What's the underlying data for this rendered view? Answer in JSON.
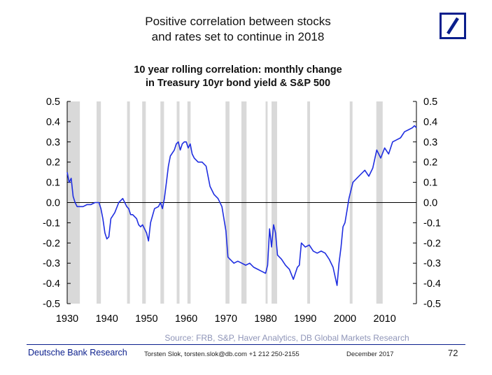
{
  "slide": {
    "title_lines": [
      "Positive correlation between stocks",
      "and rates set to continue in 2018"
    ],
    "source": "Source: FRB, S&P, Haver Analytics,  DB Global Markets Research",
    "footer_left": "Deutsche Bank Research",
    "footer_author": "Torsten Slok, torsten.slok@db.com  +1 212 250-2155",
    "footer_date": "December 2017",
    "page_number": "72",
    "logo_icon": "deutsche-bank-logo-icon",
    "colors": {
      "brand": "#0a1e8c",
      "line": "#1f2ee0",
      "recession": "#d9d9d9",
      "source": "#8f95b8"
    }
  },
  "chart_data": {
    "type": "line",
    "title_lines": [
      "10 year rolling correlation: monthly change",
      "in Treasury 10yr bond yield & S&P 500"
    ],
    "xlabel": "",
    "ylabel": "",
    "xlim": [
      1930,
      2018
    ],
    "ylim": [
      -0.5,
      0.5
    ],
    "x_ticks": [
      1930,
      1940,
      1950,
      1960,
      1970,
      1980,
      1990,
      2000,
      2010
    ],
    "y_ticks": [
      "0.5",
      "0.4",
      "0.3",
      "0.2",
      "0.1",
      "0.0",
      "-0.1",
      "-0.2",
      "-0.3",
      "-0.4",
      "-0.5"
    ],
    "y_tick_values": [
      0.5,
      0.4,
      0.3,
      0.2,
      0.1,
      0.0,
      -0.1,
      -0.2,
      -0.3,
      -0.4,
      -0.5
    ],
    "right_axis": true,
    "shaded_periods": [
      [
        1929.7,
        1933.2
      ],
      [
        1937.4,
        1938.5
      ],
      [
        1945.1,
        1945.8
      ],
      [
        1948.9,
        1949.8
      ],
      [
        1953.5,
        1954.4
      ],
      [
        1957.6,
        1958.3
      ],
      [
        1960.3,
        1961.1
      ],
      [
        1969.9,
        1970.9
      ],
      [
        1973.9,
        1975.2
      ],
      [
        1980.0,
        1980.5
      ],
      [
        1981.5,
        1982.9
      ],
      [
        1990.5,
        1991.2
      ],
      [
        2001.2,
        2001.9
      ],
      [
        2007.9,
        2009.5
      ]
    ],
    "series": [
      {
        "x": [
          1930.0,
          1930.5,
          1931.0,
          1931.5,
          1932.0,
          1932.5,
          1933.0,
          1934.0,
          1935.0,
          1936.0,
          1937.0,
          1938.0,
          1938.5,
          1939.0,
          1939.5,
          1940.0,
          1940.5,
          1941.0,
          1942.0,
          1943.0,
          1943.5,
          1944.0,
          1945.0,
          1945.5,
          1946.0,
          1946.5,
          1947.0,
          1947.5,
          1948.0,
          1948.5,
          1949.0,
          1950.0,
          1950.5,
          1951.0,
          1952.0,
          1953.0,
          1953.5,
          1954.0,
          1954.5,
          1955.0,
          1955.5,
          1956.0,
          1957.0,
          1957.5,
          1958.0,
          1958.5,
          1959.0,
          1959.5,
          1960.0,
          1960.5,
          1961.0,
          1961.5,
          1962.0,
          1963.0,
          1964.0,
          1965.0,
          1966.0,
          1967.0,
          1968.0,
          1969.0,
          1970.0,
          1970.5,
          1971.0,
          1972.0,
          1973.0,
          1974.0,
          1975.0,
          1976.0,
          1977.0,
          1978.0,
          1979.0,
          1980.0,
          1980.5,
          1981.0,
          1981.5,
          1982.0,
          1982.5,
          1983.0,
          1984.0,
          1985.0,
          1986.0,
          1987.0,
          1988.0,
          1988.5,
          1989.0,
          1990.0,
          1991.0,
          1992.0,
          1993.0,
          1994.0,
          1995.0,
          1996.0,
          1997.0,
          1998.0,
          1998.5,
          1999.0,
          1999.5,
          2000.0,
          2000.5,
          2001.0,
          2002.0,
          2003.0,
          2004.0,
          2005.0,
          2006.0,
          2007.0,
          2008.0,
          2009.0,
          2010.0,
          2011.0,
          2012.0,
          2013.0,
          2014.0,
          2015.0,
          2016.0,
          2017.0,
          2017.5,
          2018.0
        ],
        "values": [
          0.15,
          0.1,
          0.12,
          0.03,
          0.0,
          -0.02,
          -0.02,
          -0.02,
          -0.01,
          -0.01,
          0.0,
          0.0,
          -0.03,
          -0.08,
          -0.15,
          -0.18,
          -0.17,
          -0.08,
          -0.05,
          0.0,
          0.01,
          0.02,
          -0.02,
          -0.03,
          -0.06,
          -0.06,
          -0.07,
          -0.08,
          -0.11,
          -0.12,
          -0.11,
          -0.15,
          -0.19,
          -0.1,
          -0.03,
          -0.02,
          0.0,
          -0.03,
          0.02,
          0.1,
          0.18,
          0.23,
          0.26,
          0.29,
          0.3,
          0.26,
          0.29,
          0.3,
          0.3,
          0.27,
          0.29,
          0.24,
          0.22,
          0.2,
          0.2,
          0.18,
          0.08,
          0.04,
          0.02,
          -0.02,
          -0.14,
          -0.27,
          -0.28,
          -0.3,
          -0.29,
          -0.3,
          -0.31,
          -0.3,
          -0.32,
          -0.33,
          -0.34,
          -0.35,
          -0.31,
          -0.13,
          -0.22,
          -0.11,
          -0.15,
          -0.26,
          -0.28,
          -0.31,
          -0.33,
          -0.38,
          -0.32,
          -0.31,
          -0.2,
          -0.22,
          -0.21,
          -0.24,
          -0.25,
          -0.24,
          -0.25,
          -0.28,
          -0.32,
          -0.41,
          -0.3,
          -0.22,
          -0.12,
          -0.1,
          -0.04,
          0.02,
          0.1,
          0.12,
          0.14,
          0.16,
          0.13,
          0.17,
          0.26,
          0.22,
          0.27,
          0.24,
          0.3,
          0.31,
          0.32,
          0.35,
          0.36,
          0.37,
          0.38,
          0.37
        ]
      }
    ]
  }
}
